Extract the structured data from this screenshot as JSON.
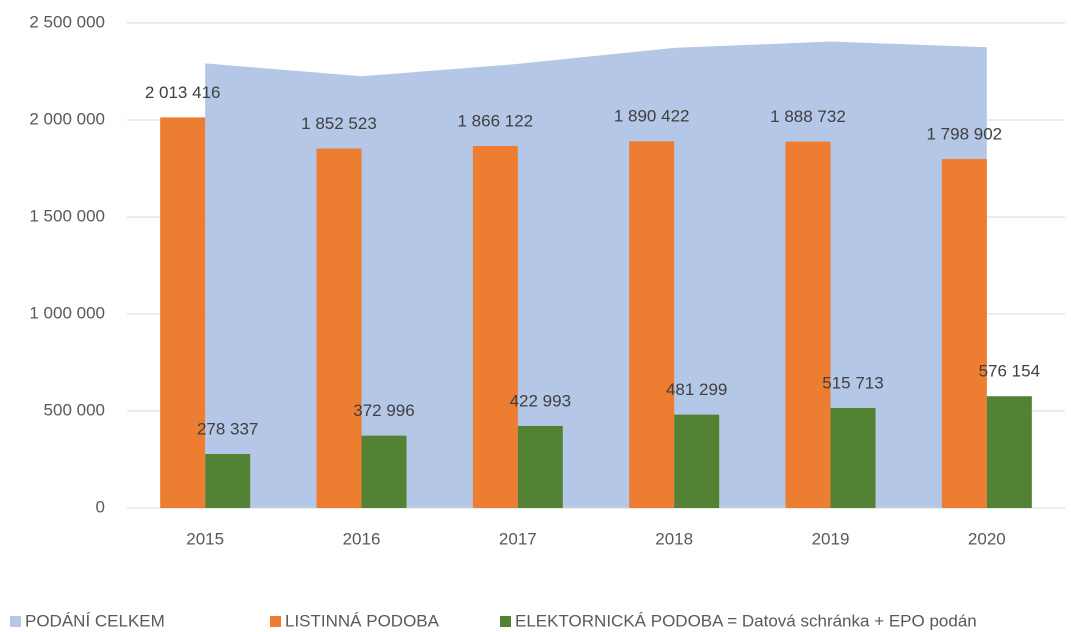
{
  "chart_data": {
    "type": "bar",
    "categories": [
      "2015",
      "2016",
      "2017",
      "2018",
      "2019",
      "2020"
    ],
    "series": [
      {
        "name": "PODÁNÍ CELKEM",
        "kind": "area",
        "color": "#b4c7e7",
        "values": [
          2291753,
          2225519,
          2289115,
          2371721,
          2404445,
          2375056
        ]
      },
      {
        "name": "LISTINNÁ PODOBA",
        "kind": "bar",
        "color": "#ed7d31",
        "values": [
          2013416,
          1852523,
          1866122,
          1890422,
          1888732,
          1798902
        ],
        "value_labels": [
          "2 013 416",
          "1 852 523",
          "1 866 122",
          "1 890 422",
          "1 888 732",
          "1 798 902"
        ]
      },
      {
        "name": "ELEKTORNICKÁ PODOBA = Datová schránka + EPO podán",
        "kind": "bar",
        "color": "#548235",
        "values": [
          278337,
          372996,
          422993,
          481299,
          515713,
          576154
        ],
        "value_labels": [
          "278 337",
          "372 996",
          "422 993",
          "481 299",
          "515 713",
          "576 154"
        ]
      }
    ],
    "ylim": [
      0,
      2500000
    ],
    "yticks": [
      0,
      {
        "value": 500000,
        "label": "500 000"
      },
      {
        "value": 1000000,
        "label": "1 000 000"
      },
      {
        "value": 1500000,
        "label": "1 500 000"
      },
      {
        "value": 2000000,
        "label": "2 000 000"
      },
      {
        "value": 2500000,
        "label": "2 500 000"
      }
    ],
    "grid": true,
    "legend": "bottom"
  }
}
